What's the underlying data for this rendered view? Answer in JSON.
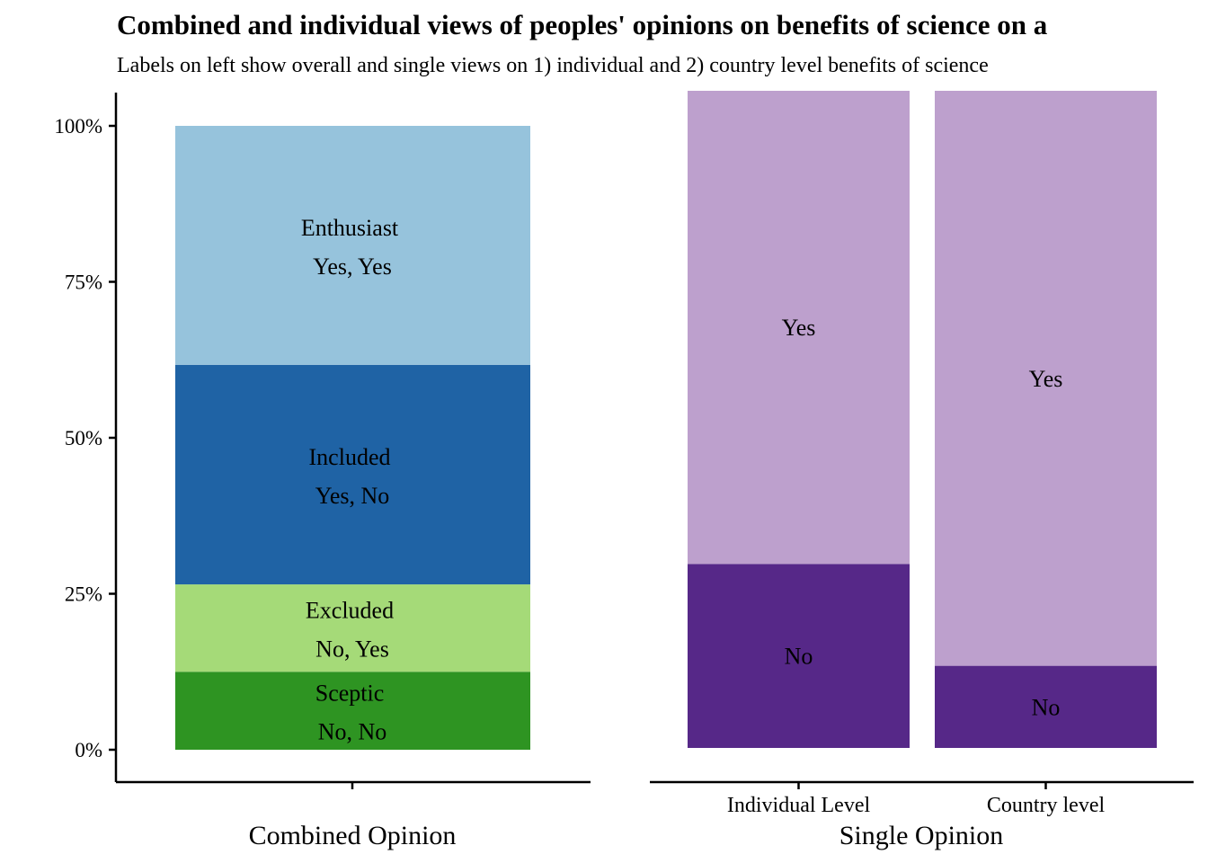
{
  "title": "Combined and individual views of peoples' opinions on benefits of science on a",
  "subtitle": "Labels on left show overall and single views on 1) individual and 2) country level benefits of science",
  "chart_data": [
    {
      "type": "bar",
      "stacked": true,
      "xlabel": "Combined Opinion",
      "ylabel": "",
      "ylim": [
        0,
        1
      ],
      "yticks": [
        "0%",
        "25%",
        "50%",
        "75%",
        "100%"
      ],
      "categories": [
        ""
      ],
      "series": [
        {
          "name": "Sceptic",
          "sublabel": "No, No",
          "values": [
            0.125
          ],
          "color": "#2e9422"
        },
        {
          "name": "Excluded",
          "sublabel": "No, Yes",
          "values": [
            0.14
          ],
          "color": "#a5da78"
        },
        {
          "name": "Included",
          "sublabel": "Yes, No",
          "values": [
            0.352
          ],
          "color": "#1f63a5"
        },
        {
          "name": "Enthusiast",
          "sublabel": "Yes, Yes",
          "values": [
            0.383
          ],
          "color": "#96c3dc"
        }
      ]
    },
    {
      "type": "bar",
      "stacked": true,
      "xlabel": "Single Opinion",
      "ylabel": "",
      "ylim": [
        0,
        1
      ],
      "categories": [
        "Individual Level",
        "Country level"
      ],
      "series": [
        {
          "name": "No",
          "values": [
            0.28,
            0.125
          ],
          "color": "#562888"
        },
        {
          "name": "Yes",
          "values": [
            0.72,
            0.875
          ],
          "color": "#bda0cd"
        }
      ]
    }
  ]
}
